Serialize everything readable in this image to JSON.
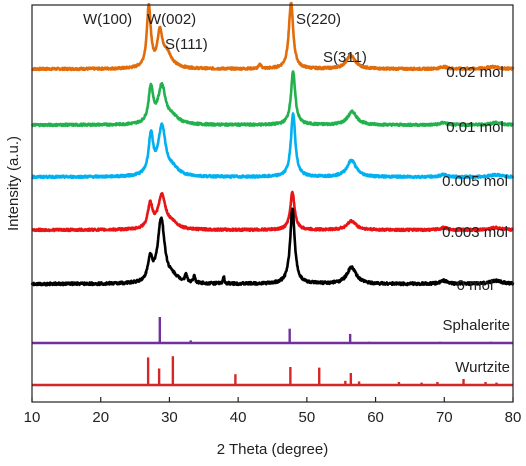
{
  "chart_data": {
    "type": "line",
    "xlabel": "2 Theta (degree)",
    "ylabel": "Intensity (a.u.)",
    "xlim": [
      10,
      80
    ],
    "xticks": [
      10,
      20,
      30,
      40,
      50,
      60,
      70,
      80
    ],
    "yticks_shown": false,
    "grid": false,
    "peak_labels": [
      {
        "text": "W(100)",
        "x": 27.0
      },
      {
        "text": "W(002)",
        "x": 28.6
      },
      {
        "text": "S(111)",
        "x": 29.5
      },
      {
        "text": "S(220)",
        "x": 47.7
      },
      {
        "text": "S(311)",
        "x": 56.4
      }
    ],
    "series": [
      {
        "name": "0.02 mol",
        "color": "#E36C0A",
        "baseline": 0.1,
        "noise": 0.01,
        "peaks": [
          {
            "x": 27.0,
            "h": 0.55,
            "w": 0.35
          },
          {
            "x": 28.6,
            "h": 0.3,
            "w": 0.4
          },
          {
            "x": 29.6,
            "h": 0.14,
            "w": 0.9
          },
          {
            "x": 43.2,
            "h": 0.04,
            "w": 0.2
          },
          {
            "x": 47.7,
            "h": 0.6,
            "w": 0.38
          },
          {
            "x": 56.4,
            "h": 0.12,
            "w": 0.8
          },
          {
            "x": 69.9,
            "h": 0.02,
            "w": 0.6
          },
          {
            "x": 77.0,
            "h": 0.02,
            "w": 1.0
          }
        ]
      },
      {
        "name": "0.01 mol",
        "color": "#22B14C",
        "baseline": 0.1,
        "noise": 0.01,
        "peaks": [
          {
            "x": 27.3,
            "h": 0.32,
            "w": 0.4
          },
          {
            "x": 28.9,
            "h": 0.34,
            "w": 0.65
          },
          {
            "x": 30.5,
            "h": 0.06,
            "w": 1.0
          },
          {
            "x": 48.0,
            "h": 0.48,
            "w": 0.38
          },
          {
            "x": 56.6,
            "h": 0.12,
            "w": 0.8
          },
          {
            "x": 69.9,
            "h": 0.02,
            "w": 0.6
          },
          {
            "x": 77.5,
            "h": 0.02,
            "w": 1.0
          }
        ]
      },
      {
        "name": "0.005 mol",
        "color": "#00B0F0",
        "baseline": 0.1,
        "noise": 0.01,
        "peaks": [
          {
            "x": 27.3,
            "h": 0.35,
            "w": 0.4
          },
          {
            "x": 28.9,
            "h": 0.44,
            "w": 0.65
          },
          {
            "x": 30.5,
            "h": 0.06,
            "w": 1.0
          },
          {
            "x": 48.0,
            "h": 0.58,
            "w": 0.38
          },
          {
            "x": 56.5,
            "h": 0.15,
            "w": 0.8
          },
          {
            "x": 69.9,
            "h": 0.02,
            "w": 0.6
          },
          {
            "x": 77.5,
            "h": 0.02,
            "w": 1.0
          }
        ]
      },
      {
        "name": "0.003 mol",
        "color": "#E81416",
        "baseline": 0.1,
        "noise": 0.01,
        "peaks": [
          {
            "x": 27.2,
            "h": 0.22,
            "w": 0.4
          },
          {
            "x": 28.9,
            "h": 0.3,
            "w": 0.65
          },
          {
            "x": 30.4,
            "h": 0.05,
            "w": 1.0
          },
          {
            "x": 47.9,
            "h": 0.34,
            "w": 0.38
          },
          {
            "x": 56.5,
            "h": 0.08,
            "w": 0.8
          },
          {
            "x": 69.9,
            "h": 0.02,
            "w": 0.6
          },
          {
            "x": 77.5,
            "h": 0.02,
            "w": 1.0
          }
        ]
      },
      {
        "name": "0 mol",
        "color": "#000000",
        "baseline": 0.1,
        "noise": 0.012,
        "peaks": [
          {
            "x": 27.2,
            "h": 0.2,
            "w": 0.4
          },
          {
            "x": 28.8,
            "h": 0.58,
            "w": 0.6
          },
          {
            "x": 30.5,
            "h": 0.05,
            "w": 1.0
          },
          {
            "x": 32.4,
            "h": 0.08,
            "w": 0.15
          },
          {
            "x": 33.6,
            "h": 0.06,
            "w": 0.15
          },
          {
            "x": 37.9,
            "h": 0.06,
            "w": 0.12
          },
          {
            "x": 47.9,
            "h": 0.68,
            "w": 0.4
          },
          {
            "x": 56.5,
            "h": 0.15,
            "w": 0.8
          },
          {
            "x": 69.9,
            "h": 0.03,
            "w": 0.6
          },
          {
            "x": 77.5,
            "h": 0.03,
            "w": 1.0
          }
        ]
      }
    ],
    "reference_patterns": [
      {
        "name": "Sphalerite",
        "color": "#7030A0",
        "lines": [
          {
            "x": 28.6,
            "h": 1.0
          },
          {
            "x": 33.1,
            "h": 0.1
          },
          {
            "x": 47.5,
            "h": 0.55
          },
          {
            "x": 56.3,
            "h": 0.35
          },
          {
            "x": 59.1,
            "h": 0.05
          },
          {
            "x": 69.4,
            "h": 0.05
          },
          {
            "x": 76.8,
            "h": 0.05
          }
        ]
      },
      {
        "name": "Wurtzite",
        "color": "#D62728",
        "lines": [
          {
            "x": 26.9,
            "h": 0.92
          },
          {
            "x": 28.5,
            "h": 0.55
          },
          {
            "x": 30.5,
            "h": 0.96
          },
          {
            "x": 39.6,
            "h": 0.36
          },
          {
            "x": 47.6,
            "h": 0.6
          },
          {
            "x": 51.8,
            "h": 0.58
          },
          {
            "x": 55.6,
            "h": 0.14
          },
          {
            "x": 56.4,
            "h": 0.4
          },
          {
            "x": 57.6,
            "h": 0.12
          },
          {
            "x": 63.4,
            "h": 0.1
          },
          {
            "x": 66.7,
            "h": 0.08
          },
          {
            "x": 69.0,
            "h": 0.1
          },
          {
            "x": 72.8,
            "h": 0.2
          },
          {
            "x": 76.0,
            "h": 0.1
          },
          {
            "x": 77.6,
            "h": 0.08
          }
        ]
      }
    ]
  }
}
